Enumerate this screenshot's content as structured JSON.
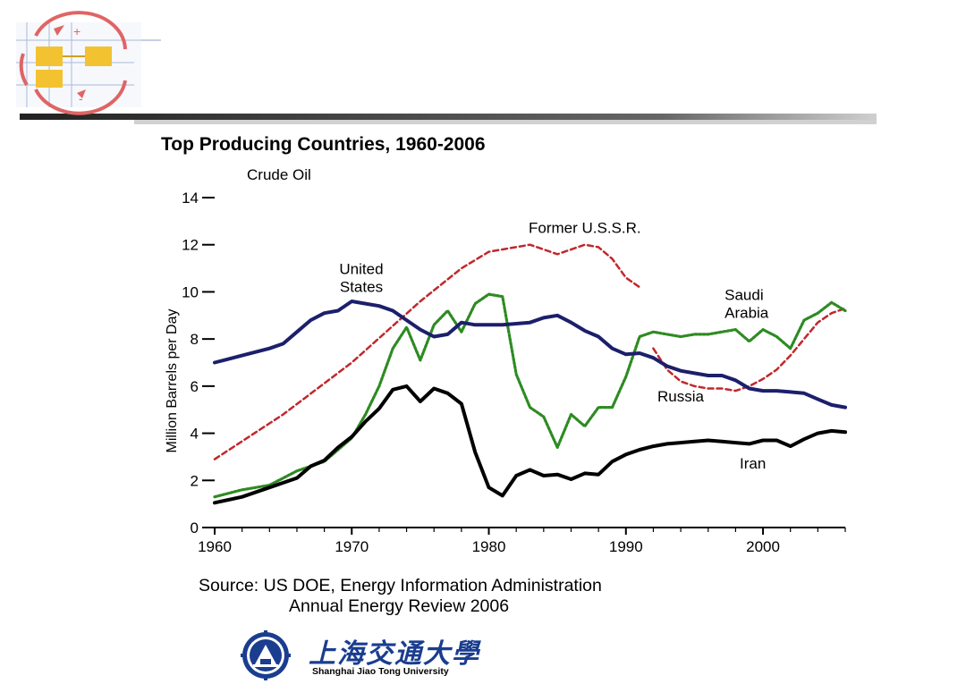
{
  "chart_data": {
    "type": "line",
    "title": "Top Producing Countries, 1960-2006",
    "subtitle": "Crude Oil",
    "ylabel": "Million Barrels per Day",
    "xlabel": "",
    "xlim": [
      1960,
      2006
    ],
    "ylim": [
      0,
      14
    ],
    "xticks": [
      1960,
      1970,
      1980,
      1990,
      2000
    ],
    "yticks": [
      0,
      2,
      4,
      6,
      8,
      10,
      12,
      14
    ],
    "grid": false,
    "legend": "none",
    "series": [
      {
        "name": "Former U.S.S.R.",
        "color": "#c0282d",
        "style": "dashed",
        "points": [
          [
            1960,
            2.9
          ],
          [
            1965,
            4.8
          ],
          [
            1970,
            7.0
          ],
          [
            1975,
            9.6
          ],
          [
            1978,
            11.0
          ],
          [
            1980,
            11.7
          ],
          [
            1983,
            12.0
          ],
          [
            1985,
            11.6
          ],
          [
            1987,
            12.0
          ],
          [
            1988,
            11.9
          ],
          [
            1989,
            11.4
          ],
          [
            1990,
            10.6
          ],
          [
            1991,
            10.2
          ]
        ]
      },
      {
        "name": "Russia",
        "color": "#c0282d",
        "style": "dashed",
        "points": [
          [
            1992,
            7.6
          ],
          [
            1993,
            6.7
          ],
          [
            1994,
            6.2
          ],
          [
            1995,
            6.0
          ],
          [
            1996,
            5.9
          ],
          [
            1997,
            5.9
          ],
          [
            1998,
            5.8
          ],
          [
            1999,
            6.0
          ],
          [
            2000,
            6.3
          ],
          [
            2001,
            6.7
          ],
          [
            2002,
            7.3
          ],
          [
            2003,
            8.0
          ],
          [
            2004,
            8.7
          ],
          [
            2005,
            9.1
          ],
          [
            2006,
            9.3
          ]
        ]
      },
      {
        "name": "Saudi Arabia",
        "color": "#2e8b22",
        "style": "dotted",
        "points": [
          [
            1960,
            1.3
          ],
          [
            1962,
            1.6
          ],
          [
            1964,
            1.8
          ],
          [
            1966,
            2.4
          ],
          [
            1968,
            2.8
          ],
          [
            1970,
            3.8
          ],
          [
            1971,
            4.8
          ],
          [
            1972,
            6.0
          ],
          [
            1973,
            7.6
          ],
          [
            1974,
            8.5
          ],
          [
            1975,
            7.1
          ],
          [
            1976,
            8.6
          ],
          [
            1977,
            9.2
          ],
          [
            1978,
            8.3
          ],
          [
            1979,
            9.5
          ],
          [
            1980,
            9.9
          ],
          [
            1981,
            9.8
          ],
          [
            1982,
            6.5
          ],
          [
            1983,
            5.1
          ],
          [
            1984,
            4.7
          ],
          [
            1985,
            3.4
          ],
          [
            1986,
            4.8
          ],
          [
            1987,
            4.3
          ],
          [
            1988,
            5.1
          ],
          [
            1989,
            5.1
          ],
          [
            1990,
            6.4
          ],
          [
            1991,
            8.1
          ],
          [
            1992,
            8.3
          ],
          [
            1993,
            8.2
          ],
          [
            1994,
            8.1
          ],
          [
            1995,
            8.2
          ],
          [
            1996,
            8.2
          ],
          [
            1997,
            8.3
          ],
          [
            1998,
            8.4
          ],
          [
            1999,
            7.9
          ],
          [
            2000,
            8.4
          ],
          [
            2001,
            8.1
          ],
          [
            2002,
            7.6
          ],
          [
            2003,
            8.8
          ],
          [
            2004,
            9.1
          ],
          [
            2005,
            9.55
          ],
          [
            2006,
            9.2
          ]
        ]
      },
      {
        "name": "United States",
        "color": "#1c1f6b",
        "style": "solid",
        "points": [
          [
            1960,
            7.0
          ],
          [
            1962,
            7.3
          ],
          [
            1964,
            7.6
          ],
          [
            1965,
            7.8
          ],
          [
            1966,
            8.3
          ],
          [
            1967,
            8.8
          ],
          [
            1968,
            9.1
          ],
          [
            1969,
            9.2
          ],
          [
            1970,
            9.6
          ],
          [
            1971,
            9.5
          ],
          [
            1972,
            9.4
          ],
          [
            1973,
            9.2
          ],
          [
            1974,
            8.8
          ],
          [
            1975,
            8.4
          ],
          [
            1976,
            8.1
          ],
          [
            1977,
            8.2
          ],
          [
            1978,
            8.7
          ],
          [
            1979,
            8.6
          ],
          [
            1980,
            8.6
          ],
          [
            1981,
            8.6
          ],
          [
            1982,
            8.65
          ],
          [
            1983,
            8.7
          ],
          [
            1984,
            8.9
          ],
          [
            1985,
            9.0
          ],
          [
            1986,
            8.7
          ],
          [
            1987,
            8.35
          ],
          [
            1988,
            8.1
          ],
          [
            1989,
            7.6
          ],
          [
            1990,
            7.35
          ],
          [
            1991,
            7.4
          ],
          [
            1992,
            7.2
          ],
          [
            1993,
            6.85
          ],
          [
            1994,
            6.65
          ],
          [
            1995,
            6.55
          ],
          [
            1996,
            6.45
          ],
          [
            1997,
            6.45
          ],
          [
            1998,
            6.25
          ],
          [
            1999,
            5.9
          ],
          [
            2000,
            5.8
          ],
          [
            2001,
            5.8
          ],
          [
            2002,
            5.75
          ],
          [
            2003,
            5.7
          ],
          [
            2004,
            5.45
          ],
          [
            2005,
            5.2
          ],
          [
            2006,
            5.1
          ]
        ]
      },
      {
        "name": "Iran",
        "color": "#000000",
        "style": "solid",
        "points": [
          [
            1960,
            1.05
          ],
          [
            1962,
            1.3
          ],
          [
            1964,
            1.7
          ],
          [
            1966,
            2.1
          ],
          [
            1967,
            2.6
          ],
          [
            1968,
            2.85
          ],
          [
            1969,
            3.4
          ],
          [
            1970,
            3.85
          ],
          [
            1971,
            4.5
          ],
          [
            1972,
            5.05
          ],
          [
            1973,
            5.85
          ],
          [
            1974,
            6.0
          ],
          [
            1975,
            5.35
          ],
          [
            1976,
            5.9
          ],
          [
            1977,
            5.7
          ],
          [
            1978,
            5.25
          ],
          [
            1979,
            3.2
          ],
          [
            1980,
            1.7
          ],
          [
            1981,
            1.35
          ],
          [
            1982,
            2.2
          ],
          [
            1983,
            2.45
          ],
          [
            1984,
            2.2
          ],
          [
            1985,
            2.25
          ],
          [
            1986,
            2.05
          ],
          [
            1987,
            2.3
          ],
          [
            1988,
            2.25
          ],
          [
            1989,
            2.8
          ],
          [
            1990,
            3.1
          ],
          [
            1991,
            3.3
          ],
          [
            1992,
            3.45
          ],
          [
            1993,
            3.55
          ],
          [
            1994,
            3.6
          ],
          [
            1995,
            3.65
          ],
          [
            1996,
            3.7
          ],
          [
            1997,
            3.65
          ],
          [
            1998,
            3.6
          ],
          [
            1999,
            3.55
          ],
          [
            2000,
            3.7
          ],
          [
            2001,
            3.7
          ],
          [
            2002,
            3.45
          ],
          [
            2003,
            3.75
          ],
          [
            2004,
            4.0
          ],
          [
            2005,
            4.1
          ],
          [
            2006,
            4.05
          ]
        ]
      }
    ],
    "annotations": [
      {
        "label": "Former U.S.S.R.",
        "x": 1987,
        "y": 12.5,
        "align": "middle"
      },
      {
        "label": "United\nStates",
        "x": 1970.7,
        "y": 10.75,
        "align": "middle"
      },
      {
        "label": "Saudi\nArabia",
        "x": 1997.2,
        "y": 9.65,
        "align": "start"
      },
      {
        "label": "Russia",
        "x": 1992.3,
        "y": 5.35,
        "align": "start"
      },
      {
        "label": "Iran",
        "x": 1998.3,
        "y": 2.5,
        "align": "start"
      }
    ]
  },
  "source": {
    "line1": "Source: US DOE, Energy Information Administration",
    "line2": "Annual Energy Review 2006"
  },
  "university_logo": {
    "name_cn": "上海交通大學",
    "name_en": "Shanghai Jiao Tong University",
    "emblem_icon": "sjtu-emblem-icon",
    "color": "#1a3d8f"
  },
  "header_logo_icon": "process-cycle-logo-icon"
}
